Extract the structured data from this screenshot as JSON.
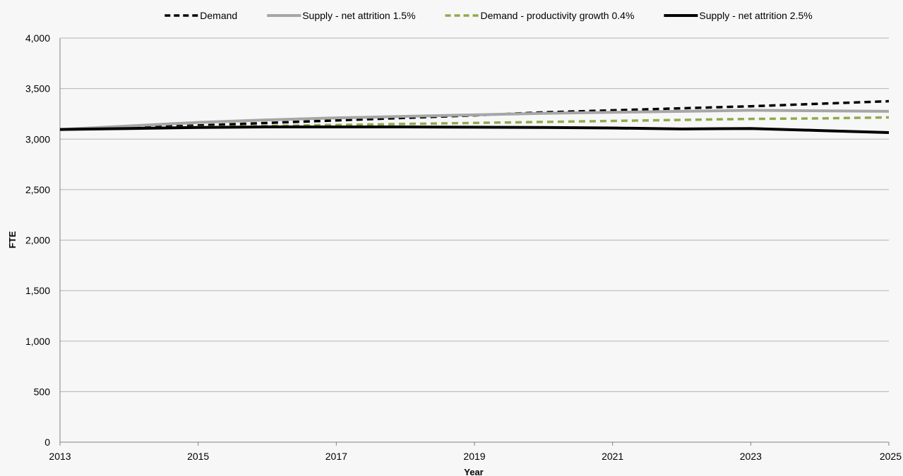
{
  "chart_data": {
    "type": "line",
    "title": "",
    "xlabel": "Year",
    "ylabel": "FTE",
    "xlim": [
      2013,
      2025
    ],
    "ylim": [
      0,
      4000
    ],
    "x_ticks": [
      2013,
      2015,
      2017,
      2019,
      2021,
      2023,
      2025
    ],
    "y_ticks": [
      0,
      500,
      1000,
      1500,
      2000,
      2500,
      3000,
      3500,
      4000
    ],
    "y_tick_labels": [
      "0",
      "500",
      "1,000",
      "1,500",
      "2,000",
      "2,500",
      "3,000",
      "3,500",
      "4,000"
    ],
    "grid": "horizontal",
    "legend_position": "top",
    "x": [
      2013,
      2014,
      2015,
      2016,
      2017,
      2018,
      2019,
      2020,
      2021,
      2022,
      2023,
      2024,
      2025
    ],
    "series": [
      {
        "name": "Demand",
        "color": "#000000",
        "dash": "dashed",
        "values": [
          3095,
          3110,
          3135,
          3160,
          3185,
          3210,
          3235,
          3265,
          3285,
          3305,
          3325,
          3350,
          3375
        ]
      },
      {
        "name": "Supply - net attrition 1.5%",
        "color": "#a6a6a6",
        "dash": "solid",
        "values": [
          3095,
          3130,
          3165,
          3190,
          3210,
          3225,
          3240,
          3255,
          3265,
          3275,
          3285,
          3280,
          3275
        ]
      },
      {
        "name": "Demand  - productivity growth 0.4%",
        "color": "#8faa4e",
        "dash": "dashed",
        "values": [
          3095,
          3105,
          3120,
          3130,
          3140,
          3150,
          3160,
          3170,
          3180,
          3190,
          3200,
          3205,
          3215
        ]
      },
      {
        "name": "Supply - net attrition 2.5%",
        "color": "#000000",
        "dash": "solid",
        "values": [
          3095,
          3105,
          3115,
          3120,
          3120,
          3120,
          3118,
          3115,
          3110,
          3100,
          3105,
          3085,
          3065
        ]
      }
    ]
  }
}
